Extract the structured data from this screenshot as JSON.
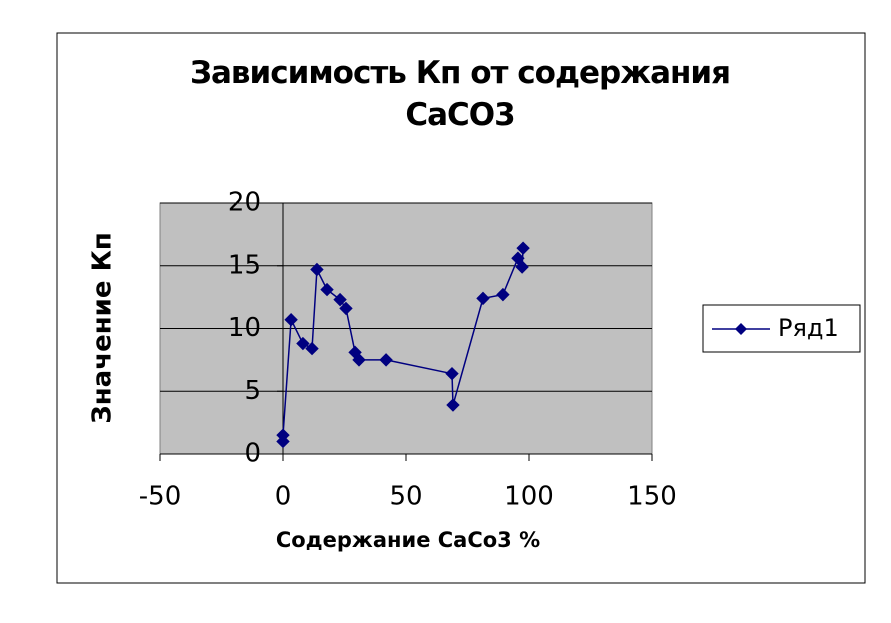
{
  "chart_data": {
    "type": "scatter_line",
    "title": "Зависимость Кп от содержания CaCO3",
    "x_label": "Содержание CaCo3 %",
    "y_label": "Значение Кп",
    "xlim": [
      -50,
      150
    ],
    "xticks": [
      -50,
      0,
      50,
      100,
      150
    ],
    "ylim": [
      0,
      20
    ],
    "yticks": [
      0,
      5,
      10,
      15,
      20
    ],
    "grid": true,
    "legend": "right",
    "series": [
      {
        "name": "Ряд1",
        "color": "#000080",
        "x": [
          0,
          0,
          3.3,
          8.1,
          11.8,
          13.8,
          17.9,
          23.2,
          25.6,
          29.3,
          30.9,
          41.9,
          68.7,
          69.1,
          81.3,
          89.4,
          95.5,
          97.2,
          97.6
        ],
        "values": [
          1.0,
          1.5,
          10.7,
          8.8,
          8.4,
          14.7,
          13.1,
          12.3,
          11.6,
          8.1,
          7.5,
          7.5,
          6.4,
          3.9,
          12.4,
          12.7,
          15.6,
          14.9,
          16.4
        ]
      }
    ]
  }
}
